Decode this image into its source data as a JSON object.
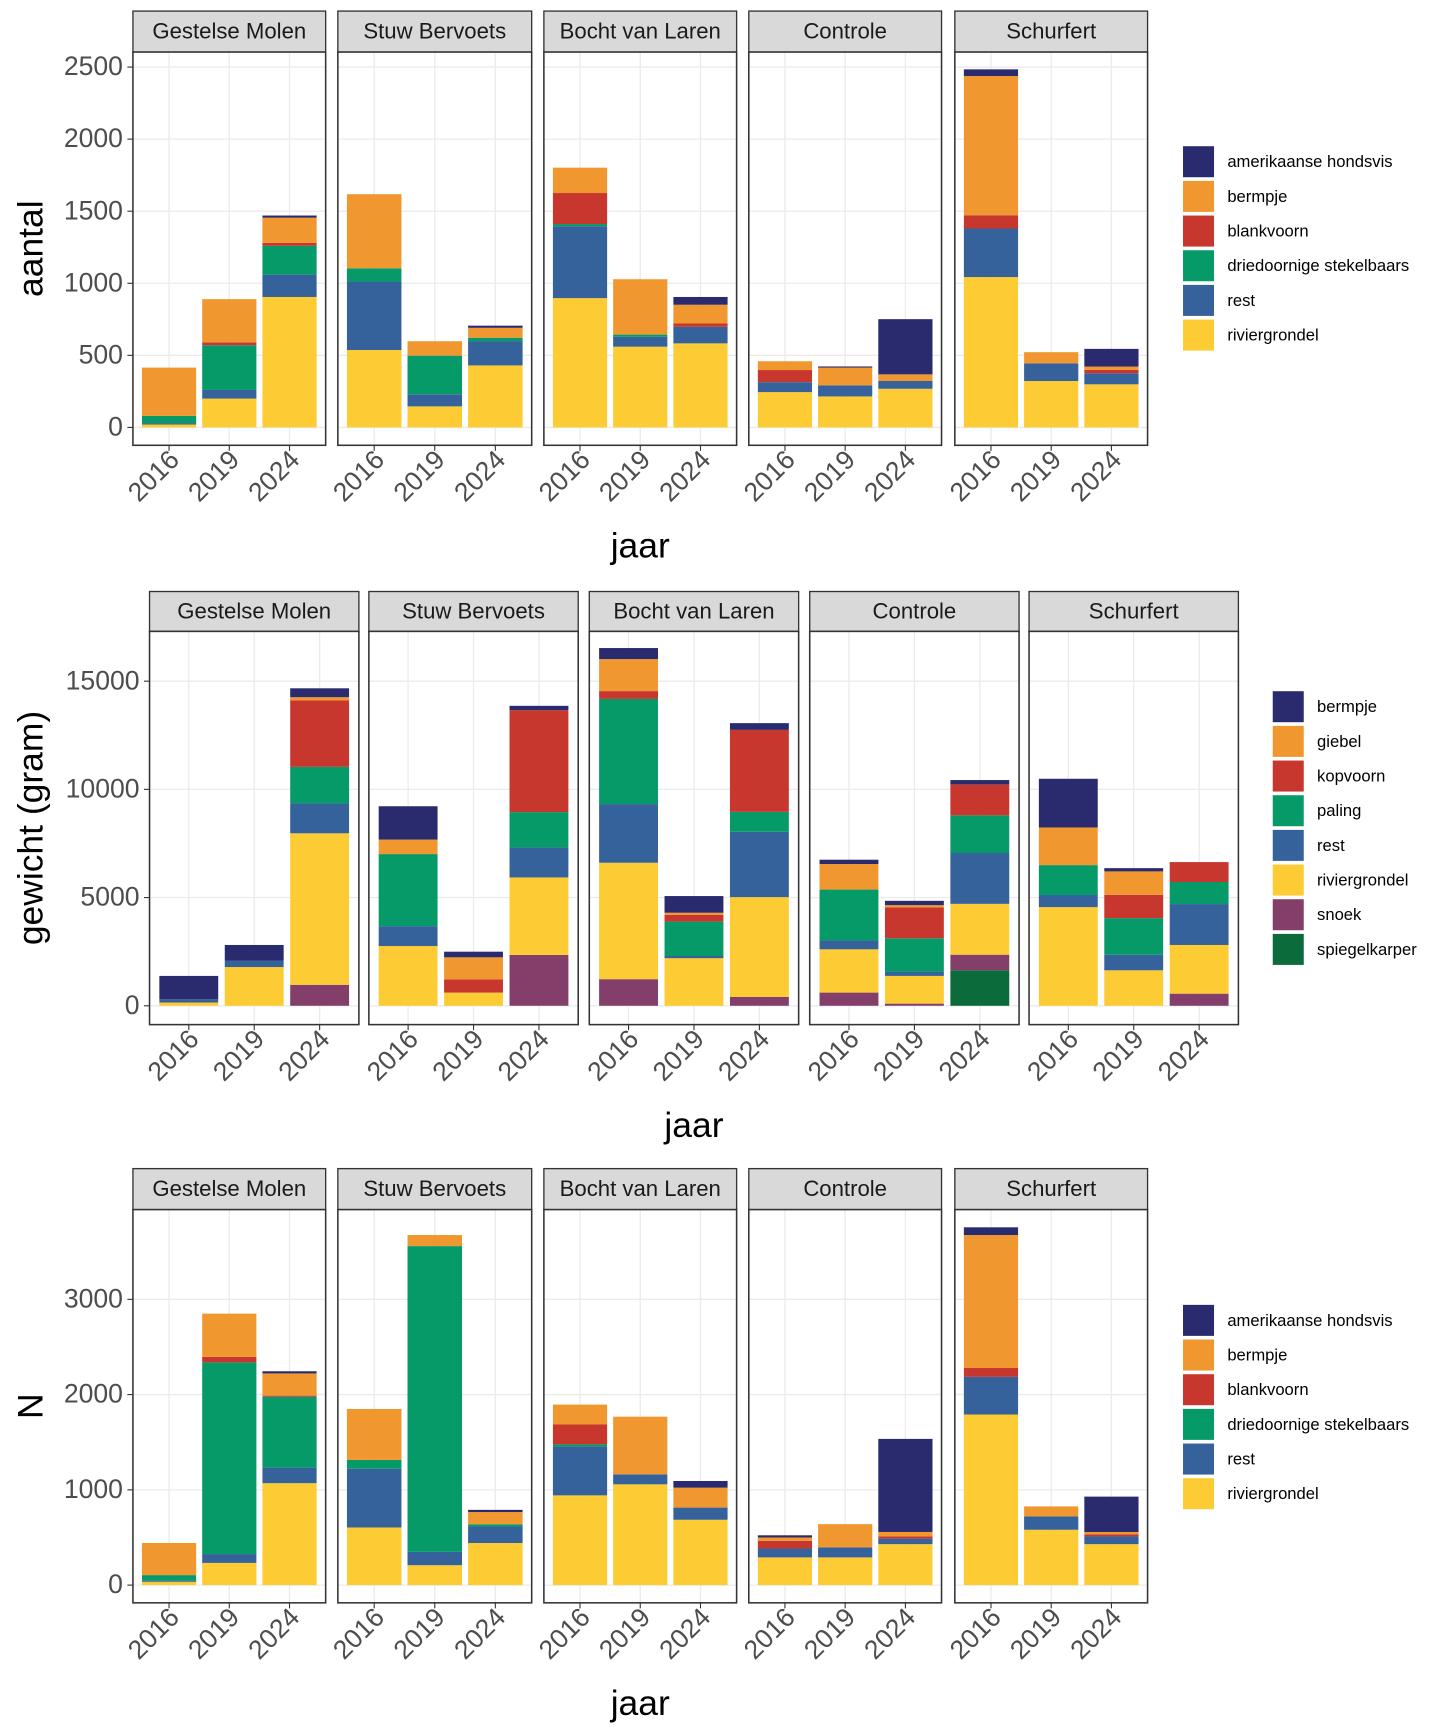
{
  "chart_data": [
    {
      "type": "bar",
      "stacked": true,
      "ylabel": "aantal",
      "xlabel": "jaar",
      "facets": [
        "Gestelse Molen",
        "Stuw Bervoets",
        "Bocht van Laren",
        "Controle",
        "Schurfert"
      ],
      "categories": [
        "2016",
        "2019",
        "2024"
      ],
      "ylim": [
        -124,
        2604
      ],
      "yticks": [
        0,
        500,
        1000,
        1500,
        2000,
        2500
      ],
      "grid": true,
      "series": [
        {
          "name": "amerikaanse hondsvis",
          "color": "#2a2a6e",
          "values": [
            [
              0,
              0,
              15
            ],
            [
              0,
              0,
              15
            ],
            [
              0,
              0,
              54
            ],
            [
              0,
              8,
              383
            ],
            [
              46,
              0,
              123
            ]
          ]
        },
        {
          "name": "bermpje",
          "color": "#f0982f",
          "values": [
            [
              335,
              300,
              175
            ],
            [
              514,
              100,
              69
            ],
            [
              176,
              384,
              130
            ],
            [
              61,
              123,
              46
            ],
            [
              966,
              77,
              23
            ]
          ]
        },
        {
          "name": "blankvoorn",
          "color": "#c8372d",
          "values": [
            [
              0,
              20,
              20
            ],
            [
              0,
              0,
              0
            ],
            [
              215,
              0,
              23
            ],
            [
              84,
              0,
              0
            ],
            [
              92,
              0,
              23
            ]
          ]
        },
        {
          "name": "driedoornige stekelbaars",
          "color": "#079a69",
          "values": [
            [
              50,
              310,
              200
            ],
            [
              92,
              268,
              23
            ],
            [
              15,
              15,
              0
            ],
            [
              0,
              0,
              0
            ],
            [
              0,
              0,
              0
            ]
          ]
        },
        {
          "name": "rest",
          "color": "#35629a",
          "values": [
            [
              10,
              60,
              155
            ],
            [
              475,
              84,
              169
            ],
            [
              499,
              69,
              115
            ],
            [
              69,
              77,
              54
            ],
            [
              337,
              123,
              77
            ]
          ]
        },
        {
          "name": "riviergrondel",
          "color": "#fdcb33",
          "values": [
            [
              20,
              200,
              905
            ],
            [
              537,
              146,
              430
            ],
            [
              897,
              560,
              583
            ],
            [
              245,
              215,
              268
            ],
            [
              1043,
              322,
              299
            ]
          ]
        }
      ]
    },
    {
      "type": "bar",
      "stacked": true,
      "ylabel": "gewicht (gram)",
      "xlabel": "jaar",
      "facets": [
        "Gestelse Molen",
        "Stuw Bervoets",
        "Bocht van Laren",
        "Controle",
        "Schurfert"
      ],
      "categories": [
        "2016",
        "2019",
        "2024"
      ],
      "ylim": [
        -870,
        17300
      ],
      "yticks": [
        0,
        5000,
        10000,
        15000
      ],
      "grid": true,
      "series": [
        {
          "name": "bermpje",
          "color": "#2a2a6e",
          "values": [
            [
              1080,
              720,
              410
            ],
            [
              1540,
              260,
              200
            ],
            [
              510,
              770,
              310
            ],
            [
              200,
              200,
              200
            ],
            [
              2250,
              150,
              0
            ]
          ]
        },
        {
          "name": "giebel",
          "color": "#f0982f",
          "values": [
            [
              0,
              0,
              150
            ],
            [
              670,
              1020,
              0
            ],
            [
              1480,
              100,
              0
            ],
            [
              1180,
              100,
              0
            ],
            [
              1740,
              1080,
              0
            ]
          ]
        },
        {
          "name": "kopvoorn",
          "color": "#c8372d",
          "values": [
            [
              0,
              0,
              3070
            ],
            [
              0,
              610,
              4710
            ],
            [
              360,
              310,
              3790
            ],
            [
              0,
              1430,
              1430
            ],
            [
              0,
              1080,
              920
            ]
          ]
        },
        {
          "name": "paling",
          "color": "#079a69",
          "values": [
            [
              0,
              0,
              1690
            ],
            [
              3330,
              0,
              1640
            ],
            [
              4860,
              1590,
              920
            ],
            [
              2350,
              1540,
              1740
            ],
            [
              1380,
              1690,
              1020
            ]
          ]
        },
        {
          "name": "rest",
          "color": "#35629a",
          "values": [
            [
              150,
              300,
              1380
            ],
            [
              920,
              0,
              1380
            ],
            [
              2710,
              100,
              3020
            ],
            [
              410,
              200,
              2350
            ],
            [
              560,
              720,
              1890
            ]
          ]
        },
        {
          "name": "riviergrondel",
          "color": "#fdcb33",
          "values": [
            [
              150,
              1790,
              7000
            ],
            [
              2760,
              610,
              3580
            ],
            [
              5380,
              2200,
              4610
            ],
            [
              2000,
              1280,
              2350
            ],
            [
              4560,
              1640,
              2250
            ]
          ]
        },
        {
          "name": "snoek",
          "color": "#833f6a",
          "values": [
            [
              0,
              0,
              970
            ],
            [
              0,
              0,
              2350
            ],
            [
              1230,
              0,
              410
            ],
            [
              610,
              100,
              720
            ],
            [
              0,
              0,
              560
            ]
          ]
        },
        {
          "name": "spiegelkarper",
          "color": "#0b6b3a",
          "values": [
            [
              0,
              0,
              0
            ],
            [
              0,
              0,
              0
            ],
            [
              0,
              0,
              0
            ],
            [
              0,
              0,
              1640
            ],
            [
              0,
              0,
              0
            ]
          ]
        }
      ]
    },
    {
      "type": "bar",
      "stacked": true,
      "ylabel": "N",
      "xlabel": "jaar",
      "facets": [
        "Gestelse Molen",
        "Stuw Bervoets",
        "Bocht van Laren",
        "Controle",
        "Schurfert"
      ],
      "categories": [
        "2016",
        "2019",
        "2024"
      ],
      "ylim": [
        -186,
        3942
      ],
      "yticks": [
        0,
        1000,
        2000,
        3000
      ],
      "grid": true,
      "series": [
        {
          "name": "amerikaanse hondsvis",
          "color": "#2a2a6e",
          "values": [
            [
              0,
              0,
              23
            ],
            [
              0,
              0,
              23
            ],
            [
              0,
              0,
              70
            ],
            [
              23,
              0,
              977
            ],
            [
              81,
              0,
              372
            ]
          ]
        },
        {
          "name": "bermpje",
          "color": "#f0982f",
          "values": [
            [
              337,
              454,
              233
            ],
            [
              535,
              116,
              128
            ],
            [
              209,
              605,
              209
            ],
            [
              35,
              244,
              47
            ],
            [
              1396,
              105,
              23
            ]
          ]
        },
        {
          "name": "blankvoorn",
          "color": "#c8372d",
          "values": [
            [
              0,
              58,
              12
            ],
            [
              0,
              0,
              0
            ],
            [
              209,
              0,
              0
            ],
            [
              81,
              0,
              23
            ],
            [
              93,
              0,
              23
            ]
          ]
        },
        {
          "name": "driedoornige stekelbaars",
          "color": "#079a69",
          "values": [
            [
              58,
              2012,
              744
            ],
            [
              93,
              3210,
              23
            ],
            [
              23,
              0,
              0
            ],
            [
              0,
              0,
              0
            ],
            [
              0,
              0,
              0
            ]
          ]
        },
        {
          "name": "rest",
          "color": "#35629a",
          "values": [
            [
              12,
              93,
              163
            ],
            [
              616,
              140,
              174
            ],
            [
              512,
              105,
              128
            ],
            [
              93,
              105,
              58
            ],
            [
              395,
              140,
              81
            ]
          ]
        },
        {
          "name": "riviergrondel",
          "color": "#fdcb33",
          "values": [
            [
              35,
              233,
              1070
            ],
            [
              605,
              209,
              442
            ],
            [
              942,
              1058,
              686
            ],
            [
              291,
              291,
              430
            ],
            [
              1791,
              581,
              430
            ]
          ]
        }
      ]
    }
  ]
}
